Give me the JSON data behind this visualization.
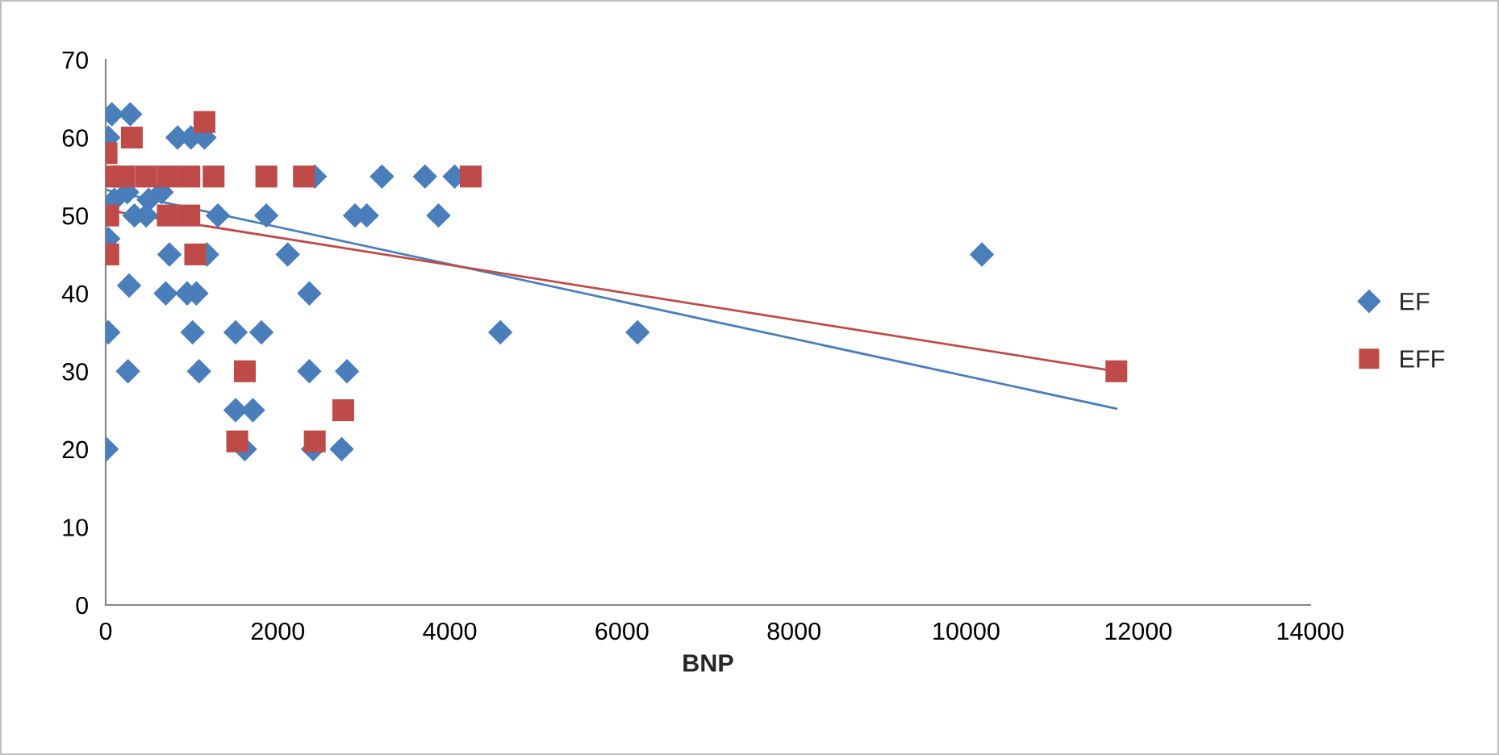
{
  "chart_data": {
    "type": "scatter",
    "xlabel": "BNP",
    "xlim": [
      0,
      14000
    ],
    "xticks": [
      0,
      2000,
      4000,
      6000,
      8000,
      10000,
      12000,
      14000
    ],
    "ylim": [
      0,
      70
    ],
    "yticks": [
      0,
      10,
      20,
      30,
      40,
      50,
      60,
      70
    ],
    "grid": false,
    "legend": "right",
    "series": [
      {
        "name": "EF",
        "color": "#4a7ebb",
        "marker": "diamond",
        "x": [
          72,
          285,
          30,
          835,
          991,
          1148,
          2430,
          3211,
          3711,
          4056,
          334,
          470,
          1304,
          1867,
          2898,
          3035,
          3868,
          100,
          250,
          500,
          650,
          30,
          741,
          1178,
          2116,
          272,
          698,
          947,
          1054,
          2367,
          30,
          1010,
          1510,
          1810,
          4587,
          6182,
          259,
          1085,
          2367,
          2805,
          1510,
          1711,
          10,
          1617,
          2411,
          2743,
          10184
        ],
        "values": [
          63,
          63,
          60,
          60,
          60,
          60,
          55,
          55,
          55,
          55,
          50,
          50,
          50,
          50,
          50,
          50,
          50,
          52,
          53,
          52,
          53,
          47,
          45,
          45,
          45,
          41,
          40,
          40,
          40,
          40,
          35,
          35,
          35,
          35,
          35,
          35,
          30,
          30,
          30,
          30,
          25,
          25,
          20,
          20,
          20,
          20,
          45
        ]
      },
      {
        "name": "EFF",
        "color": "#be4b48",
        "marker": "square",
        "x": [
          1148,
          304,
          10,
          30,
          216,
          470,
          722,
          972,
          1254,
          1867,
          2304,
          4243,
          30,
          722,
          972,
          30,
          1041,
          1617,
          2761,
          1529,
          2430,
          11747
        ],
        "values": [
          62,
          60,
          58,
          55,
          55,
          55,
          55,
          55,
          55,
          55,
          55,
          55,
          50,
          50,
          50,
          45,
          45,
          30,
          25,
          21,
          21,
          30
        ]
      },
      {
        "type": "line",
        "color": "#4a7ebb",
        "x": [
          0,
          11747
        ],
        "values": [
          53.3,
          25.2
        ]
      },
      {
        "type": "line",
        "color": "#be4b48",
        "x": [
          0,
          11747
        ],
        "values": [
          50.7,
          30.0
        ]
      }
    ]
  }
}
